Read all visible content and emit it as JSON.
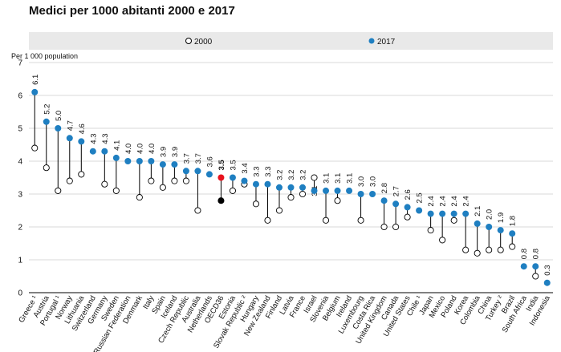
{
  "chart_data": {
    "type": "scatter",
    "subtype": "dumbbell",
    "title": "Medici per 1000 abitanti 2000 e 2017",
    "ylabel": "Per 1 000 population",
    "ylim": [
      0,
      7
    ],
    "yticks": [
      0,
      1,
      2,
      3,
      4,
      5,
      6,
      7
    ],
    "grid": true,
    "legend_position": "top",
    "series": [
      {
        "name": "2000",
        "marker": "open-circle",
        "color": "#ffffff"
      },
      {
        "name": "2017",
        "marker": "filled-circle",
        "color": "#1f7fc1"
      }
    ],
    "highlight": {
      "category": "OECD36",
      "color_2017": "#e8121d",
      "color_2000": "#000000"
    },
    "categories": [
      "Greece ¹",
      "Austria",
      "Portugal ¹",
      "Norway",
      "Lithuania",
      "Switzerland",
      "Germany",
      "Sweden",
      "Russian Federation",
      "Denmark",
      "Italy",
      "Spain",
      "Iceland",
      "Czech Republic",
      "Australia",
      "Netherlands",
      "OECD36",
      "Estonia",
      "Slovak Republic ²",
      "Hungary",
      "New Zealand",
      "Finland",
      "Latvia",
      "France",
      "Israel",
      "Slovenia",
      "Belgium",
      "Ireland",
      "Luxembourg",
      "Costa Rica",
      "United Kingdom",
      "Canada",
      "United States",
      "Chile ¹",
      "Japan",
      "Mexico",
      "Poland",
      "Korea",
      "Colombia",
      "China",
      "Turkey ²",
      "Brazil",
      "South Africa",
      "India",
      "Indonesia"
    ],
    "values_2017": [
      6.1,
      5.2,
      5.0,
      4.7,
      4.6,
      4.3,
      4.3,
      4.1,
      4.0,
      4.0,
      4.0,
      3.9,
      3.9,
      3.7,
      3.7,
      3.6,
      3.5,
      3.5,
      3.4,
      3.3,
      3.3,
      3.2,
      3.2,
      3.2,
      3.1,
      3.1,
      3.1,
      3.1,
      3.0,
      3.0,
      2.8,
      2.7,
      2.6,
      2.5,
      2.4,
      2.4,
      2.4,
      2.4,
      2.1,
      2.0,
      1.9,
      1.8,
      0.8,
      0.8,
      0.3
    ],
    "labels_2017": [
      "6.1",
      "5.2",
      "5.0",
      "4.7",
      "4.6",
      "4.3",
      "4.3",
      "4.1",
      "4.0",
      "4.0",
      "4.0",
      "3.9",
      "3.9",
      "3.7",
      "3.7",
      "3.6",
      "3.5",
      "3.5",
      "3.4",
      "3.3",
      "3.3",
      "3.2",
      "3.2",
      "3.2",
      "3.1",
      "3.1",
      "3.1",
      "3.1",
      "3.0",
      "3.0",
      "2.8",
      "2.7",
      "2.6",
      "2.5",
      "2.4",
      "2.4",
      "2.4",
      "2.4",
      "2.1",
      "2.0",
      "1.9",
      "1.8",
      "0.8",
      "0.8",
      "0.3"
    ],
    "values_2000": [
      4.4,
      3.8,
      3.1,
      3.4,
      3.6,
      null,
      3.3,
      3.1,
      null,
      2.9,
      3.4,
      3.2,
      3.4,
      3.4,
      2.5,
      null,
      2.8,
      3.1,
      3.3,
      2.7,
      2.2,
      2.5,
      2.9,
      3.0,
      3.5,
      2.2,
      2.8,
      null,
      2.2,
      null,
      2.0,
      2.0,
      2.3,
      null,
      1.9,
      1.6,
      2.2,
      1.3,
      1.2,
      1.3,
      1.3,
      1.4,
      null,
      0.5,
      null
    ]
  }
}
